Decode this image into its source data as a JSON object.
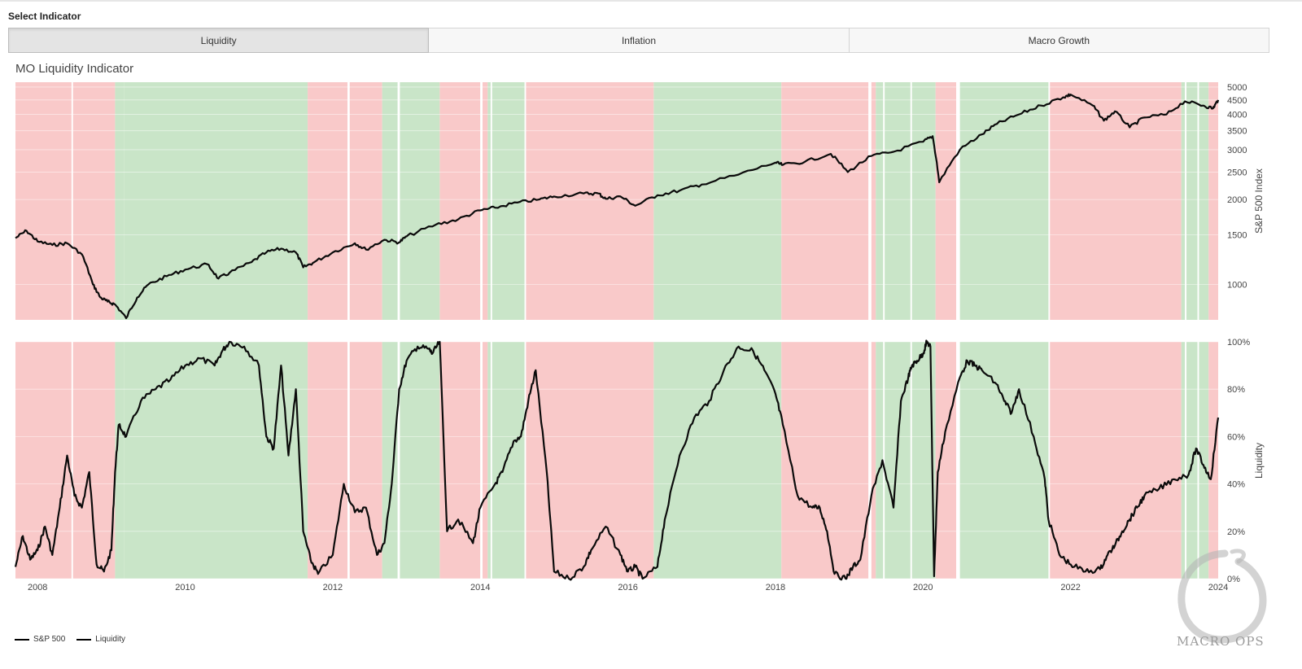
{
  "header": {
    "select_label": "Select Indicator"
  },
  "tabs": [
    {
      "label": "Liquidity",
      "active": true
    },
    {
      "label": "Inflation",
      "active": false
    },
    {
      "label": "Macro Growth",
      "active": false
    }
  ],
  "chart_title": "MO Liquidity Indicator",
  "legend": [
    {
      "label": "S&P 500",
      "color": "#000000"
    },
    {
      "label": "Liquidity",
      "color": "#000000"
    }
  ],
  "watermark_text": "MACRO OPS",
  "colors": {
    "regime_bad": "#f9c9c9",
    "regime_good": "#c9e5c8",
    "line": "#0b0b0b",
    "grid": "#ffffff"
  },
  "chart_data": [
    {
      "type": "line",
      "title": "MO Liquidity Indicator",
      "ylabel": "S&P 500 Index",
      "yscale": "log",
      "ylim": [
        750,
        5200
      ],
      "xlim": [
        2007.7,
        2024.0
      ],
      "yticks": [
        "1000",
        "1500",
        "2000",
        "2500",
        "3000",
        "3500",
        "4000",
        "4500",
        "5000"
      ],
      "series": [
        {
          "name": "S&P 500",
          "x": [
            2007.7,
            2007.85,
            2008.0,
            2008.2,
            2008.4,
            2008.6,
            2008.75,
            2008.85,
            2008.95,
            2009.05,
            2009.2,
            2009.35,
            2009.5,
            2009.75,
            2010.0,
            2010.3,
            2010.45,
            2010.6,
            2010.9,
            2011.1,
            2011.3,
            2011.5,
            2011.6,
            2011.75,
            2012.0,
            2012.3,
            2012.45,
            2012.7,
            2012.9,
            2013.0,
            2013.4,
            2013.7,
            2014.0,
            2014.2,
            2014.5,
            2014.8,
            2015.0,
            2015.4,
            2015.6,
            2015.7,
            2015.9,
            2016.1,
            2016.4,
            2016.7,
            2017.0,
            2017.5,
            2018.0,
            2018.1,
            2018.4,
            2018.75,
            2018.98,
            2019.3,
            2019.6,
            2020.0,
            2020.13,
            2020.22,
            2020.5,
            2020.8,
            2021.0,
            2021.3,
            2021.6,
            2021.9,
            2022.0,
            2022.3,
            2022.45,
            2022.6,
            2022.8,
            2023.0,
            2023.3,
            2023.55,
            2023.8,
            2023.93,
            2024.0
          ],
          "y": [
            1460,
            1550,
            1420,
            1380,
            1400,
            1280,
            1000,
            900,
            870,
            850,
            760,
            900,
            1000,
            1070,
            1130,
            1180,
            1050,
            1100,
            1200,
            1300,
            1340,
            1300,
            1150,
            1200,
            1300,
            1400,
            1330,
            1440,
            1410,
            1480,
            1630,
            1700,
            1830,
            1870,
            1950,
            2000,
            2050,
            2100,
            2100,
            2010,
            2050,
            1900,
            2070,
            2150,
            2260,
            2450,
            2700,
            2650,
            2720,
            2900,
            2500,
            2850,
            2950,
            3200,
            3350,
            2300,
            3000,
            3400,
            3700,
            4000,
            4300,
            4600,
            4700,
            4300,
            3800,
            4100,
            3600,
            3900,
            4000,
            4450,
            4300,
            4200,
            4500
          ]
        }
      ]
    },
    {
      "type": "line",
      "ylabel": "Liquidity",
      "ylim": [
        0,
        100
      ],
      "xlim": [
        2007.7,
        2024.0
      ],
      "xticks": [
        "2008",
        "2010",
        "2012",
        "2014",
        "2016",
        "2018",
        "2020",
        "2022",
        "2024"
      ],
      "yticks": [
        "0%",
        "20%",
        "40%",
        "60%",
        "80%",
        "100%"
      ],
      "series": [
        {
          "name": "Liquidity",
          "x": [
            2007.7,
            2007.8,
            2007.9,
            2008.0,
            2008.1,
            2008.2,
            2008.3,
            2008.4,
            2008.5,
            2008.6,
            2008.7,
            2008.8,
            2008.9,
            2009.0,
            2009.05,
            2009.1,
            2009.2,
            2009.4,
            2009.6,
            2009.8,
            2010.0,
            2010.2,
            2010.4,
            2010.5,
            2010.6,
            2010.8,
            2011.0,
            2011.1,
            2011.2,
            2011.3,
            2011.4,
            2011.5,
            2011.6,
            2011.7,
            2011.8,
            2012.0,
            2012.15,
            2012.3,
            2012.45,
            2012.6,
            2012.7,
            2012.8,
            2012.9,
            2013.0,
            2013.15,
            2013.3,
            2013.35,
            2013.45,
            2013.55,
            2013.7,
            2013.9,
            2014.0,
            2014.2,
            2014.3,
            2014.45,
            2014.55,
            2014.65,
            2014.75,
            2014.9,
            2015.0,
            2015.2,
            2015.4,
            2015.5,
            2015.7,
            2015.9,
            2016.0,
            2016.1,
            2016.2,
            2016.4,
            2016.5,
            2016.7,
            2016.9,
            2017.1,
            2017.3,
            2017.5,
            2017.7,
            2017.85,
            2018.0,
            2018.1,
            2018.3,
            2018.5,
            2018.6,
            2018.7,
            2018.8,
            2018.95,
            2019.05,
            2019.15,
            2019.3,
            2019.45,
            2019.6,
            2019.7,
            2019.8,
            2019.85,
            2019.92,
            2020.0,
            2020.05,
            2020.1,
            2020.15,
            2020.2,
            2020.3,
            2020.5,
            2020.6,
            2020.7,
            2020.8,
            2021.0,
            2021.1,
            2021.2,
            2021.3,
            2021.5,
            2021.65,
            2021.7,
            2021.85,
            2022.0,
            2022.2,
            2022.4,
            2022.5,
            2022.6,
            2022.7,
            2022.8,
            2022.9,
            2023.0,
            2023.2,
            2023.4,
            2023.6,
            2023.7,
            2023.8,
            2023.9,
            2024.0
          ],
          "y": [
            5,
            18,
            8,
            12,
            22,
            10,
            30,
            52,
            35,
            30,
            45,
            6,
            3,
            12,
            45,
            65,
            60,
            75,
            80,
            84,
            90,
            93,
            90,
            96,
            100,
            98,
            90,
            60,
            55,
            90,
            52,
            80,
            20,
            8,
            2,
            10,
            40,
            28,
            30,
            10,
            15,
            40,
            80,
            92,
            98,
            97,
            95,
            100,
            20,
            25,
            15,
            30,
            40,
            45,
            58,
            60,
            75,
            88,
            45,
            3,
            0,
            5,
            12,
            22,
            10,
            3,
            5,
            0,
            5,
            25,
            52,
            68,
            75,
            88,
            98,
            96,
            88,
            78,
            65,
            35,
            30,
            30,
            20,
            2,
            0,
            5,
            8,
            35,
            50,
            30,
            75,
            85,
            90,
            92,
            95,
            100,
            98,
            1,
            45,
            62,
            85,
            92,
            90,
            88,
            82,
            75,
            70,
            80,
            60,
            42,
            25,
            10,
            6,
            3,
            4,
            10,
            14,
            20,
            25,
            30,
            35,
            38,
            42,
            44,
            55,
            48,
            42,
            68
          ]
        }
      ]
    }
  ],
  "regime_bands": [
    {
      "start": 2007.7,
      "end": 2008.46,
      "regime": "bad"
    },
    {
      "start": 2008.46,
      "end": 2008.48,
      "regime": "gap"
    },
    {
      "start": 2008.48,
      "end": 2009.05,
      "regime": "bad"
    },
    {
      "start": 2009.05,
      "end": 2009.17,
      "regime": "good"
    },
    {
      "start": 2009.17,
      "end": 2011.66,
      "regime": "good"
    },
    {
      "start": 2011.66,
      "end": 2012.2,
      "regime": "bad"
    },
    {
      "start": 2012.2,
      "end": 2012.23,
      "regime": "gap"
    },
    {
      "start": 2012.23,
      "end": 2012.67,
      "regime": "bad"
    },
    {
      "start": 2012.67,
      "end": 2012.88,
      "regime": "good"
    },
    {
      "start": 2012.88,
      "end": 2012.91,
      "regime": "gap"
    },
    {
      "start": 2012.91,
      "end": 2013.45,
      "regime": "good"
    },
    {
      "start": 2013.45,
      "end": 2014.0,
      "regime": "bad"
    },
    {
      "start": 2014.0,
      "end": 2014.03,
      "regime": "gap"
    },
    {
      "start": 2014.03,
      "end": 2014.1,
      "regime": "bad"
    },
    {
      "start": 2014.1,
      "end": 2014.14,
      "regime": "good"
    },
    {
      "start": 2014.14,
      "end": 2014.16,
      "regime": "gap"
    },
    {
      "start": 2014.16,
      "end": 2014.6,
      "regime": "good"
    },
    {
      "start": 2014.6,
      "end": 2014.62,
      "regime": "gap"
    },
    {
      "start": 2014.62,
      "end": 2016.35,
      "regime": "bad"
    },
    {
      "start": 2016.35,
      "end": 2018.08,
      "regime": "good"
    },
    {
      "start": 2018.08,
      "end": 2019.26,
      "regime": "bad"
    },
    {
      "start": 2019.26,
      "end": 2019.3,
      "regime": "gap"
    },
    {
      "start": 2019.3,
      "end": 2019.36,
      "regime": "bad"
    },
    {
      "start": 2019.36,
      "end": 2019.46,
      "regime": "good"
    },
    {
      "start": 2019.46,
      "end": 2019.48,
      "regime": "gap"
    },
    {
      "start": 2019.48,
      "end": 2019.83,
      "regime": "good"
    },
    {
      "start": 2019.83,
      "end": 2019.85,
      "regime": "gap"
    },
    {
      "start": 2019.85,
      "end": 2020.17,
      "regime": "good"
    },
    {
      "start": 2020.17,
      "end": 2020.45,
      "regime": "bad"
    },
    {
      "start": 2020.45,
      "end": 2020.5,
      "regime": "gap"
    },
    {
      "start": 2020.5,
      "end": 2021.7,
      "regime": "good"
    },
    {
      "start": 2021.7,
      "end": 2021.72,
      "regime": "gap"
    },
    {
      "start": 2021.72,
      "end": 2023.5,
      "regime": "bad"
    },
    {
      "start": 2023.5,
      "end": 2023.55,
      "regime": "good"
    },
    {
      "start": 2023.55,
      "end": 2023.57,
      "regime": "gap"
    },
    {
      "start": 2023.57,
      "end": 2023.72,
      "regime": "good"
    },
    {
      "start": 2023.72,
      "end": 2023.74,
      "regime": "gap"
    },
    {
      "start": 2023.74,
      "end": 2023.87,
      "regime": "good"
    },
    {
      "start": 2023.87,
      "end": 2024.0,
      "regime": "bad"
    }
  ]
}
